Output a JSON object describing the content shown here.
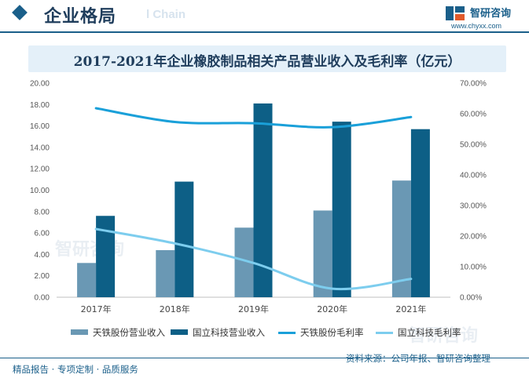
{
  "header": {
    "section_title": "企业格局",
    "section_title_en": "l Chain",
    "brand_name": "智研咨询",
    "brand_url": "www.chyxx.com"
  },
  "footer": {
    "left": "精品报告 · 专项定制 · 品质服务",
    "right": "资料来源：公司年报、智研咨询整理"
  },
  "watermark": "智研咨询",
  "colors": {
    "tiantie_revenue": "#6a98b4",
    "guoli_revenue": "#0d5f86",
    "tiantie_margin": "#1aa0d9",
    "guoli_margin": "#7dcdee",
    "accent": "#1a5f8a"
  },
  "chart_data": {
    "type": "bar",
    "title": "2017-2021年企业橡胶制品相关产品营业收入及毛利率（亿元）",
    "categories": [
      "2017年",
      "2018年",
      "2019年",
      "2020年",
      "2021年"
    ],
    "ylim": [
      0,
      20
    ],
    "yticks": [
      "0.00",
      "2.00",
      "4.00",
      "6.00",
      "8.00",
      "10.00",
      "12.00",
      "14.00",
      "16.00",
      "18.00",
      "20.00"
    ],
    "y2lim": [
      0,
      70
    ],
    "y2ticks": [
      "0.00%",
      "10.00%",
      "20.00%",
      "30.00%",
      "40.00%",
      "50.00%",
      "60.00%",
      "70.00%"
    ],
    "grid": false,
    "legend_position": "bottom",
    "series": [
      {
        "name": "天铁股份营业收入",
        "kind": "bar",
        "axis": "left",
        "values": [
          3.2,
          4.4,
          6.5,
          8.1,
          10.9
        ]
      },
      {
        "name": "国立科技营业收入",
        "kind": "bar",
        "axis": "left",
        "values": [
          7.6,
          10.8,
          18.1,
          16.4,
          15.7
        ]
      },
      {
        "name": "天铁股份毛利率",
        "kind": "line",
        "axis": "right",
        "values": [
          61.8,
          57.3,
          56.9,
          55.6,
          58.9
        ]
      },
      {
        "name": "国立科技毛利率",
        "kind": "line",
        "axis": "right",
        "values": [
          22.3,
          17.6,
          11.2,
          2.8,
          6.0
        ]
      }
    ]
  }
}
